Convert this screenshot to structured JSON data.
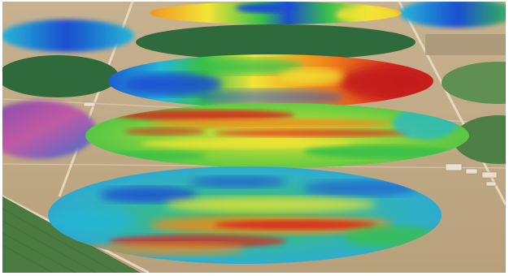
{
  "image": {
    "kind": "aerial-photograph",
    "subject": "center-pivot-irrigation-fields",
    "overlay": "heat-map-false-color",
    "palette": {
      "ground": "#c9b48e",
      "ground_dark": "#b49a73",
      "road": "#e3d7bd",
      "green_field": "#2f6b3a",
      "green_field_light": "#5f8f52",
      "blue": "#1b4fd0",
      "cyan": "#23b7d6",
      "green": "#39c04a",
      "yellow": "#f2e436",
      "orange": "#f08a1c",
      "red": "#d8281e",
      "purple": "#7a4bb0",
      "magenta": "#c25aa3"
    }
  }
}
